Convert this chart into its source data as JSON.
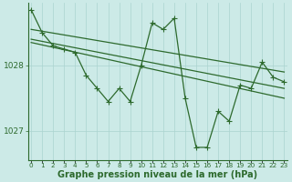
{
  "background_color": "#cceae7",
  "plot_bg_color": "#cceae7",
  "line_color": "#2d6a2d",
  "grid_color": "#aad4d0",
  "xlabel_label": "Graphe pression niveau de la mer (hPa)",
  "ylim": [
    1026.55,
    1028.95
  ],
  "yticks": [
    1027,
    1028
  ],
  "xticks": [
    0,
    1,
    2,
    3,
    4,
    5,
    6,
    7,
    8,
    9,
    10,
    11,
    12,
    13,
    14,
    15,
    16,
    17,
    18,
    19,
    20,
    21,
    22,
    23
  ],
  "hours": [
    0,
    1,
    2,
    3,
    4,
    5,
    6,
    7,
    8,
    9,
    10,
    11,
    12,
    13,
    14,
    15,
    16,
    17,
    18,
    19,
    20,
    21,
    22,
    23
  ],
  "pressure_main": [
    1028.85,
    1028.5,
    1028.3,
    1028.25,
    1028.2,
    1027.85,
    1027.65,
    1027.45,
    1027.65,
    1027.45,
    1028.0,
    1028.65,
    1028.55,
    1028.72,
    1027.5,
    1026.75,
    1026.75,
    1027.3,
    1027.15,
    1027.7,
    1027.65,
    1028.05,
    1027.82,
    1027.75
  ],
  "trend1": [
    1028.55,
    1027.9
  ],
  "trend2": [
    1028.4,
    1027.65
  ],
  "trend3": [
    1028.35,
    1027.5
  ],
  "marker_size": 4,
  "linewidth": 0.9,
  "figsize": [
    3.2,
    2.0
  ],
  "dpi": 100,
  "xlabel_fontsize": 7,
  "ytick_fontsize": 6.5,
  "xtick_fontsize": 5.2,
  "xlabel_fontweight": "bold"
}
